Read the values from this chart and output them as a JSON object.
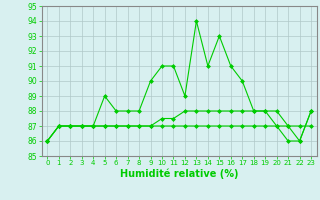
{
  "xlabel": "Humidité relative (%)",
  "x": [
    0,
    1,
    2,
    3,
    4,
    5,
    6,
    7,
    8,
    9,
    10,
    11,
    12,
    13,
    14,
    15,
    16,
    17,
    18,
    19,
    20,
    21,
    22,
    23
  ],
  "line1": [
    86,
    87,
    87,
    87,
    87,
    89,
    88,
    88,
    88,
    90,
    91,
    91,
    89,
    94,
    91,
    93,
    91,
    90,
    88,
    88,
    87,
    86,
    86,
    88
  ],
  "line2": [
    86,
    87,
    87,
    87,
    87,
    87,
    87,
    87,
    87,
    87,
    87,
    87,
    87,
    87,
    87,
    87,
    87,
    87,
    87,
    87,
    87,
    87,
    87,
    87
  ],
  "line3": [
    86,
    87,
    87,
    87,
    87,
    87,
    87,
    87,
    87,
    87,
    87.5,
    87.5,
    88,
    88,
    88,
    88,
    88,
    88,
    88,
    88,
    88,
    87,
    86,
    88
  ],
  "line_color": "#00cc00",
  "bg_color": "#d8f0f0",
  "grid_color": "#b0c8c8",
  "ylim": [
    85,
    95
  ],
  "yticks": [
    85,
    86,
    87,
    88,
    89,
    90,
    91,
    92,
    93,
    94,
    95
  ],
  "markersize": 2.5
}
